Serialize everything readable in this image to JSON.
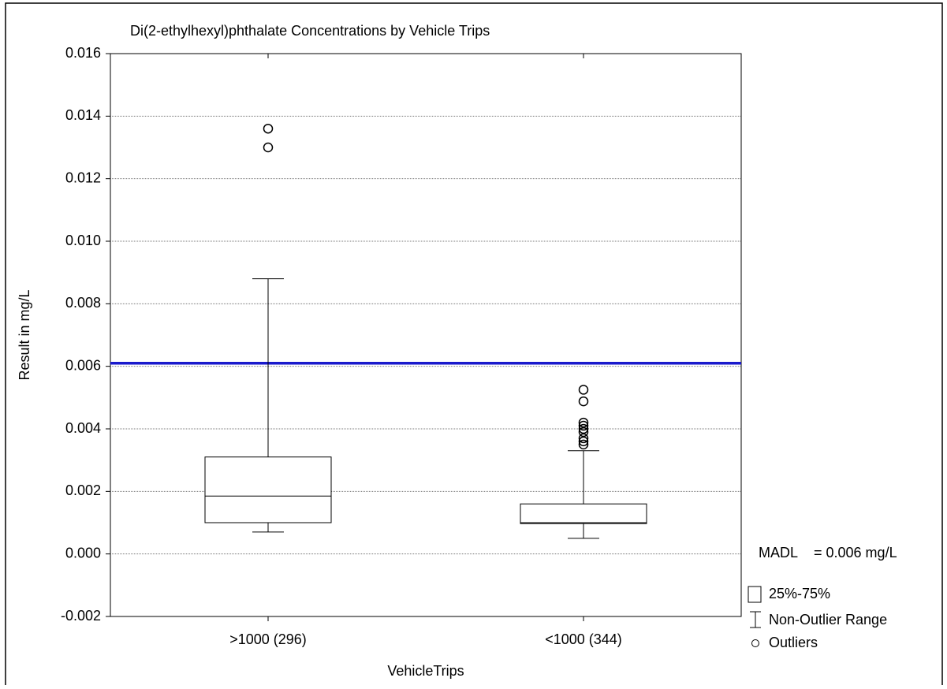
{
  "chart_data": {
    "type": "box",
    "title": "Di(2-ethylhexyl)phthalate Concentrations by Vehicle Trips",
    "x_label": "VehicleTrips",
    "y_label": "Result in mg/L",
    "categories": [
      ">1000 (296)",
      "<1000 (344)"
    ],
    "boxes": [
      {
        "whisker_low": 0.0007,
        "q1": 0.001,
        "median": 0.00185,
        "q3": 0.0031,
        "whisker_high": 0.0088,
        "outliers": [
          0.0136,
          0.013
        ]
      },
      {
        "whisker_low": 0.0005,
        "q1": 0.00097,
        "median": 0.001,
        "q3": 0.0016,
        "whisker_high": 0.0033,
        "outliers": [
          0.00525,
          0.00488,
          0.0042,
          0.0041,
          0.004,
          0.0039,
          0.0037,
          0.0036,
          0.0035
        ]
      }
    ],
    "ylim": [
      -0.002,
      0.016
    ],
    "yticks": [
      {
        "value": -0.002,
        "label": "-0.002"
      },
      {
        "value": 0,
        "label": "0.000"
      },
      {
        "value": 0.002,
        "label": "0.002"
      },
      {
        "value": 0.004,
        "label": "0.004"
      },
      {
        "value": 0.006,
        "label": "0.006"
      },
      {
        "value": 0.008,
        "label": "0.008"
      },
      {
        "value": 0.01,
        "label": "0.010"
      },
      {
        "value": 0.012,
        "label": "0.012"
      },
      {
        "value": 0.014,
        "label": "0.014"
      },
      {
        "value": 0.016,
        "label": "0.016"
      }
    ],
    "grid": true,
    "reference_line": {
      "value": 0.0061,
      "name": "MADL",
      "text": "= 0.006 mg/L",
      "color": "#1a1acc"
    },
    "legend": [
      "25%-75%",
      "Non-Outlier Range",
      "Outliers"
    ]
  }
}
